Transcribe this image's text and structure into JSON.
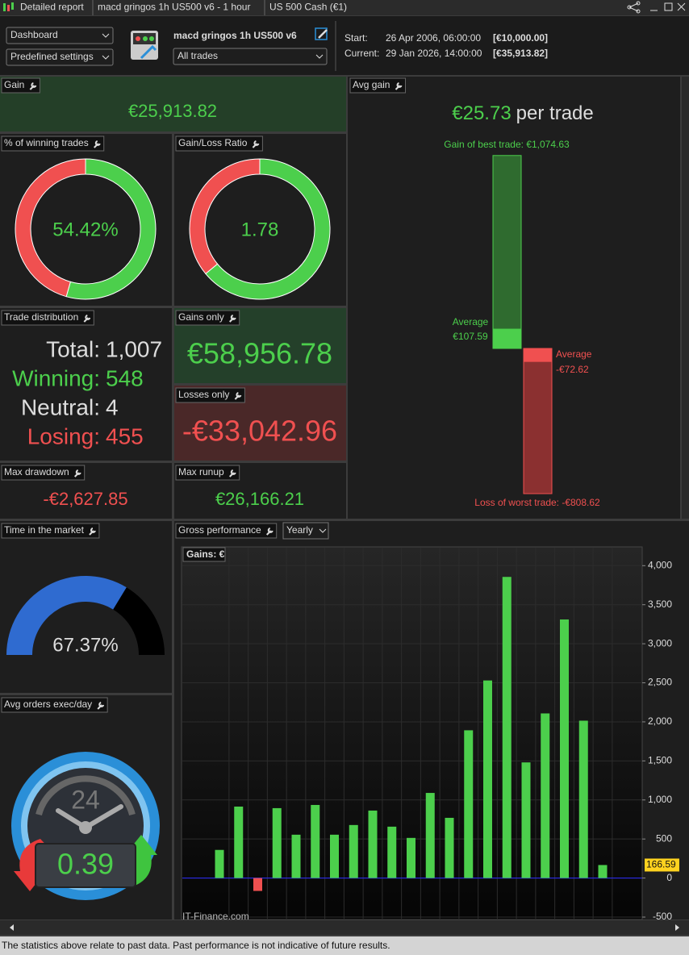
{
  "title_bar": {
    "tabs": [
      "Detailed report",
      "macd gringos 1h US500 v6 - 1 hour",
      "US 500 Cash (€1)"
    ]
  },
  "toolbar": {
    "view_select": "Dashboard",
    "settings_select": "Predefined settings",
    "system_name": "macd gringos 1h US500 v6",
    "trades_select": "All trades",
    "start_label": "Start:",
    "start_date": "26 Apr 2006, 06:00:00",
    "start_capital": "[€10,000.00]",
    "current_label": "Current:",
    "current_date": "29 Jan 2026, 14:00:00",
    "current_capital": "[€35,913.82]"
  },
  "panels": {
    "gain": {
      "title": "Gain",
      "value": "€25,913.82"
    },
    "avg_gain": {
      "title": "Avg gain",
      "value": "€25.73",
      "unit": "per trade",
      "best_trade": 1074.63,
      "best_trade_label": "Gain of best trade: €1,074.63",
      "average_gain_label": "Average",
      "average_gain": 107.59,
      "average_gain_value_label": "€107.59",
      "average_loss_label": "Average",
      "average_loss": -72.62,
      "average_loss_value_label": "-€72.62",
      "worst_trade": -808.62,
      "worst_trade_label": "Loss of worst trade: -€808.62"
    },
    "winning_trades": {
      "title": "% of winning trades",
      "value": 54.42,
      "value_label": "54.42%"
    },
    "gain_loss_ratio": {
      "title": "Gain/Loss Ratio",
      "value": 1.78
    },
    "trade_distribution": {
      "title": "Trade distribution",
      "rows": [
        [
          "Total:",
          "1,007"
        ],
        [
          "Winning:",
          "548"
        ],
        [
          "Neutral:",
          "4"
        ],
        [
          "Losing:",
          "455"
        ]
      ]
    },
    "gains_only": {
      "title": "Gains only",
      "value": "€58,956.78"
    },
    "losses_only": {
      "title": "Losses only",
      "value": "-€33,042.96"
    },
    "max_drawdown": {
      "title": "Max drawdown",
      "value": "-€2,627.85"
    },
    "max_runup": {
      "title": "Max runup",
      "value": "€26,166.21"
    },
    "time_in_market": {
      "title": "Time in the market",
      "value": 67.37,
      "value_label": "67.37%"
    },
    "avg_orders": {
      "title": "Avg orders exec/day",
      "value": 0.39,
      "clock_label": "24"
    }
  },
  "chart_data": {
    "type": "bar",
    "title": "Gross performance",
    "period_select": "Yearly",
    "series_label": "Gains: €",
    "values": [
      360,
      915,
      -165,
      895,
      555,
      936,
      555,
      679,
      864,
      658,
      514,
      1090,
      771,
      1892,
      2530,
      3856,
      1481,
      2108,
      3311,
      2015,
      166.59
    ],
    "colors": {
      "positive": "#4ccf4c",
      "negative": "#f05050"
    },
    "ylim": [
      -500,
      4220
    ],
    "yticks": [
      -500,
      0,
      500,
      {
        "value": 1000,
        "label": "1,000"
      },
      {
        "value": 1500,
        "label": "1,500"
      },
      {
        "value": 2000,
        "label": "2,000"
      },
      {
        "value": 2500,
        "label": "2,500"
      },
      {
        "value": 3000,
        "label": "3,000"
      },
      {
        "value": 3500,
        "label": "3,500"
      },
      {
        "value": 4000,
        "label": "4,000"
      }
    ],
    "grid": true,
    "watermark": "IT-Finance.com"
  },
  "footer": "The statistics above relate to past data. Past performance is not indicative of future results."
}
